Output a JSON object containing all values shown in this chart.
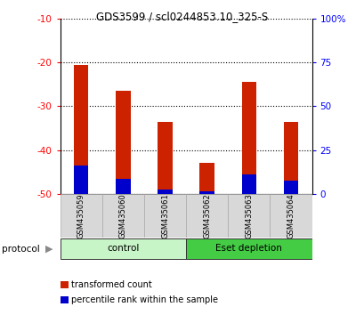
{
  "title": "GDS3599 / scl0244853.10_325-S",
  "samples": [
    "GSM435059",
    "GSM435060",
    "GSM435061",
    "GSM435062",
    "GSM435063",
    "GSM435064"
  ],
  "red_tops": [
    -20.5,
    -26.5,
    -33.5,
    -43.0,
    -24.5,
    -33.5
  ],
  "red_bottoms": [
    -50,
    -50,
    -50,
    -50,
    -50,
    -50
  ],
  "blue_tops": [
    -43.5,
    -46.5,
    -49.0,
    -49.5,
    -45.5,
    -47.0
  ],
  "blue_bottoms": [
    -50,
    -50,
    -50,
    -50,
    -50,
    -50
  ],
  "ylim": [
    -50,
    -10
  ],
  "yticks_left": [
    -10,
    -20,
    -30,
    -40,
    -50
  ],
  "yticks_right_vals": [
    -10,
    -20,
    -30,
    -40,
    -50
  ],
  "yticks_right_labels": [
    "100%",
    "75",
    "50",
    "25",
    "0"
  ],
  "groups": [
    {
      "label": "control",
      "start": 0,
      "end": 3,
      "color": "#c8f5c8"
    },
    {
      "label": "Eset depletion",
      "start": 3,
      "end": 6,
      "color": "#44cc44"
    }
  ],
  "bar_color_red": "#cc2200",
  "bar_color_blue": "#0000cc",
  "group_label": "protocol",
  "legend_red": "transformed count",
  "legend_blue": "percentile rank within the sample",
  "bar_width": 0.35
}
